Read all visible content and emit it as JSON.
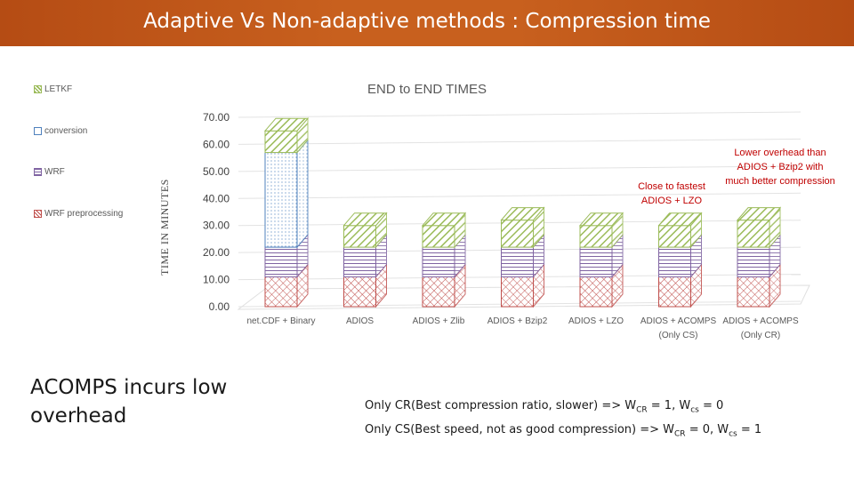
{
  "slide": {
    "title": "Adaptive Vs Non-adaptive methods : Compression time",
    "callout_close": "Close to fastest ADIOS + LZO",
    "callout_lower": "Lower overhead than ADIOS + Bzip2 with much better compression",
    "left_note": "ACOMPS incurs low overhead",
    "note_line1": {
      "prefix": "Only CR(Best compression ratio, slower) => W",
      "w1_sub": "CR",
      "mid": " = 1, W",
      "w2_sub": "cs",
      "suffix": " = 0"
    },
    "note_line2": {
      "prefix": "Only CS(Best speed, not as good compression) => W",
      "w1_sub": "CR",
      "mid": " = 0, W",
      "w2_sub": "cs",
      "suffix": " = 1"
    }
  },
  "chart_data": {
    "type": "bar",
    "stacked": true,
    "three_d": true,
    "title": "END to END TIMES",
    "ylabel": "TIME IN MINUTES",
    "ylim": [
      0,
      70
    ],
    "yticks": [
      "0.00",
      "10.00",
      "20.00",
      "30.00",
      "40.00",
      "50.00",
      "60.00",
      "70.00"
    ],
    "grid": true,
    "legend_position": "left",
    "categories": [
      "net.CDF + Binary",
      "ADIOS",
      "ADIOS + Zlib",
      "ADIOS + Bzip2",
      "ADIOS + LZO",
      "ADIOS + ACOMPS (Only CS)",
      "ADIOS + ACOMPS (Only CR)"
    ],
    "series": [
      {
        "name": "WRF preprocessing",
        "values": [
          11,
          11,
          11,
          11,
          11,
          11,
          11
        ],
        "color": "#c0504d"
      },
      {
        "name": "WRF",
        "values": [
          11,
          11,
          11,
          11,
          11,
          11,
          11
        ],
        "color": "#8064a2"
      },
      {
        "name": "conversion",
        "values": [
          35,
          0,
          0,
          0,
          0,
          0,
          0
        ],
        "color": "#4f81bd"
      },
      {
        "name": "LETKF",
        "values": [
          8,
          8,
          8,
          10,
          8,
          8,
          10
        ],
        "color": "#9bbb59"
      }
    ],
    "legend_order": [
      "LETKF",
      "conversion",
      "WRF",
      "WRF preprocessing"
    ]
  }
}
